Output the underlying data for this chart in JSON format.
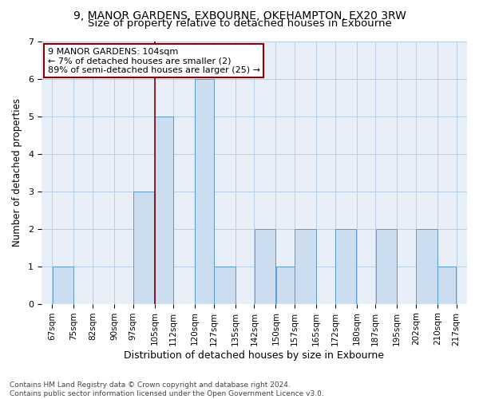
{
  "title1": "9, MANOR GARDENS, EXBOURNE, OKEHAMPTON, EX20 3RW",
  "title2": "Size of property relative to detached houses in Exbourne",
  "xlabel": "Distribution of detached houses by size in Exbourne",
  "ylabel": "Number of detached properties",
  "footnote": "Contains HM Land Registry data © Crown copyright and database right 2024.\nContains public sector information licensed under the Open Government Licence v3.0.",
  "bins": [
    67,
    75,
    82,
    90,
    97,
    105,
    112,
    120,
    127,
    135,
    142,
    150,
    157,
    165,
    172,
    180,
    187,
    195,
    202,
    210,
    217
  ],
  "bin_labels": [
    "67sqm",
    "75sqm",
    "82sqm",
    "90sqm",
    "97sqm",
    "105sqm",
    "112sqm",
    "120sqm",
    "127sqm",
    "135sqm",
    "142sqm",
    "150sqm",
    "157sqm",
    "165sqm",
    "172sqm",
    "180sqm",
    "187sqm",
    "195sqm",
    "202sqm",
    "210sqm",
    "217sqm"
  ],
  "counts": [
    1,
    0,
    0,
    0,
    3,
    5,
    0,
    6,
    1,
    0,
    2,
    1,
    2,
    0,
    2,
    0,
    2,
    0,
    2,
    1
  ],
  "bar_color": "#ccddef",
  "bar_edge_color": "#5b9bd5",
  "vline_x": 105,
  "vline_color": "#8b0000",
  "annotation_text": "9 MANOR GARDENS: 104sqm\n← 7% of detached houses are smaller (2)\n89% of semi-detached houses are larger (25) →",
  "annotation_box_color": "#8b0000",
  "ylim": [
    0,
    7
  ],
  "yticks": [
    0,
    1,
    2,
    3,
    4,
    5,
    6,
    7
  ],
  "grid_color": "#b8cfe8",
  "bg_color": "#e8eff8",
  "title1_fontsize": 10,
  "title2_fontsize": 9.5,
  "xlabel_fontsize": 9,
  "ylabel_fontsize": 8.5,
  "tick_fontsize": 7.5,
  "annot_fontsize": 8,
  "footnote_fontsize": 6.5
}
